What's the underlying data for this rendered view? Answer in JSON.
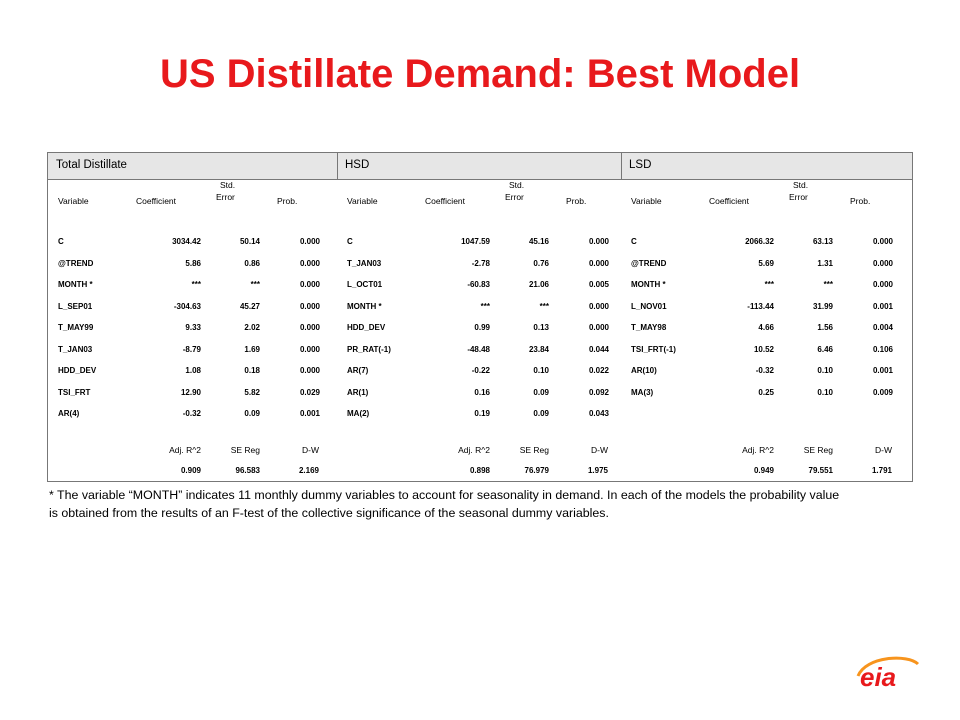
{
  "title": "US Distillate Demand:  Best Model",
  "panels": [
    {
      "name": "Total Distillate",
      "headers": [
        "Variable",
        "Coefficient",
        "Std. Error",
        "Prob."
      ],
      "rows": [
        [
          "C",
          "3034.42",
          "50.14",
          "0.000"
        ],
        [
          "@TREND",
          "5.86",
          "0.86",
          "0.000"
        ],
        [
          "MONTH *",
          "***",
          "***",
          "0.000"
        ],
        [
          "L_SEP01",
          "-304.63",
          "45.27",
          "0.000"
        ],
        [
          "T_MAY99",
          "9.33",
          "2.02",
          "0.000"
        ],
        [
          "T_JAN03",
          "-8.79",
          "1.69",
          "0.000"
        ],
        [
          "HDD_DEV",
          "1.08",
          "0.18",
          "0.000"
        ],
        [
          "TSI_FRT",
          "12.90",
          "5.82",
          "0.029"
        ],
        [
          "AR(4)",
          "-0.32",
          "0.09",
          "0.001"
        ]
      ],
      "stat_headers": [
        "Adj. R^2",
        "SE Reg",
        "D-W"
      ],
      "stats": [
        "0.909",
        "96.583",
        "2.169"
      ]
    },
    {
      "name": "HSD",
      "headers": [
        "Variable",
        "Coefficient",
        "Std. Error",
        "Prob."
      ],
      "rows": [
        [
          "C",
          "1047.59",
          "45.16",
          "0.000"
        ],
        [
          "T_JAN03",
          "-2.78",
          "0.76",
          "0.000"
        ],
        [
          "L_OCT01",
          "-60.83",
          "21.06",
          "0.005"
        ],
        [
          "MONTH *",
          "***",
          "***",
          "0.000"
        ],
        [
          "HDD_DEV",
          "0.99",
          "0.13",
          "0.000"
        ],
        [
          "PR_RAT(-1)",
          "-48.48",
          "23.84",
          "0.044"
        ],
        [
          "AR(7)",
          "-0.22",
          "0.10",
          "0.022"
        ],
        [
          "AR(1)",
          "0.16",
          "0.09",
          "0.092"
        ],
        [
          "MA(2)",
          "0.19",
          "0.09",
          "0.043"
        ]
      ],
      "stat_headers": [
        "Adj. R^2",
        "SE Reg",
        "D-W"
      ],
      "stats": [
        "0.898",
        "76.979",
        "1.975"
      ]
    },
    {
      "name": "LSD",
      "headers": [
        "Variable",
        "Coefficient",
        "Std. Error",
        "Prob."
      ],
      "rows": [
        [
          "C",
          "2066.32",
          "63.13",
          "0.000"
        ],
        [
          "@TREND",
          "5.69",
          "1.31",
          "0.000"
        ],
        [
          "MONTH *",
          "***",
          "***",
          "0.000"
        ],
        [
          "L_NOV01",
          "-113.44",
          "31.99",
          "0.001"
        ],
        [
          "T_MAY98",
          "4.66",
          "1.56",
          "0.004"
        ],
        [
          "TSI_FRT(-1)",
          "10.52",
          "6.46",
          "0.106"
        ],
        [
          "AR(10)",
          "-0.32",
          "0.10",
          "0.001"
        ],
        [
          "MA(3)",
          "0.25",
          "0.10",
          "0.009"
        ]
      ],
      "stat_headers": [
        "Adj. R^2",
        "SE Reg",
        "D-W"
      ],
      "stats": [
        "0.949",
        "79.551",
        "1.791"
      ]
    }
  ],
  "footnote": "* The variable “MONTH” indicates 11 monthly dummy variables to account for seasonality in demand.  In each of the models the probability value is obtained from the results of an F-test of the collective significance of the seasonal dummy variables.",
  "logo": {
    "text": "eia",
    "colors": {
      "red": "#e8191c",
      "orange": "#f7941d"
    }
  }
}
